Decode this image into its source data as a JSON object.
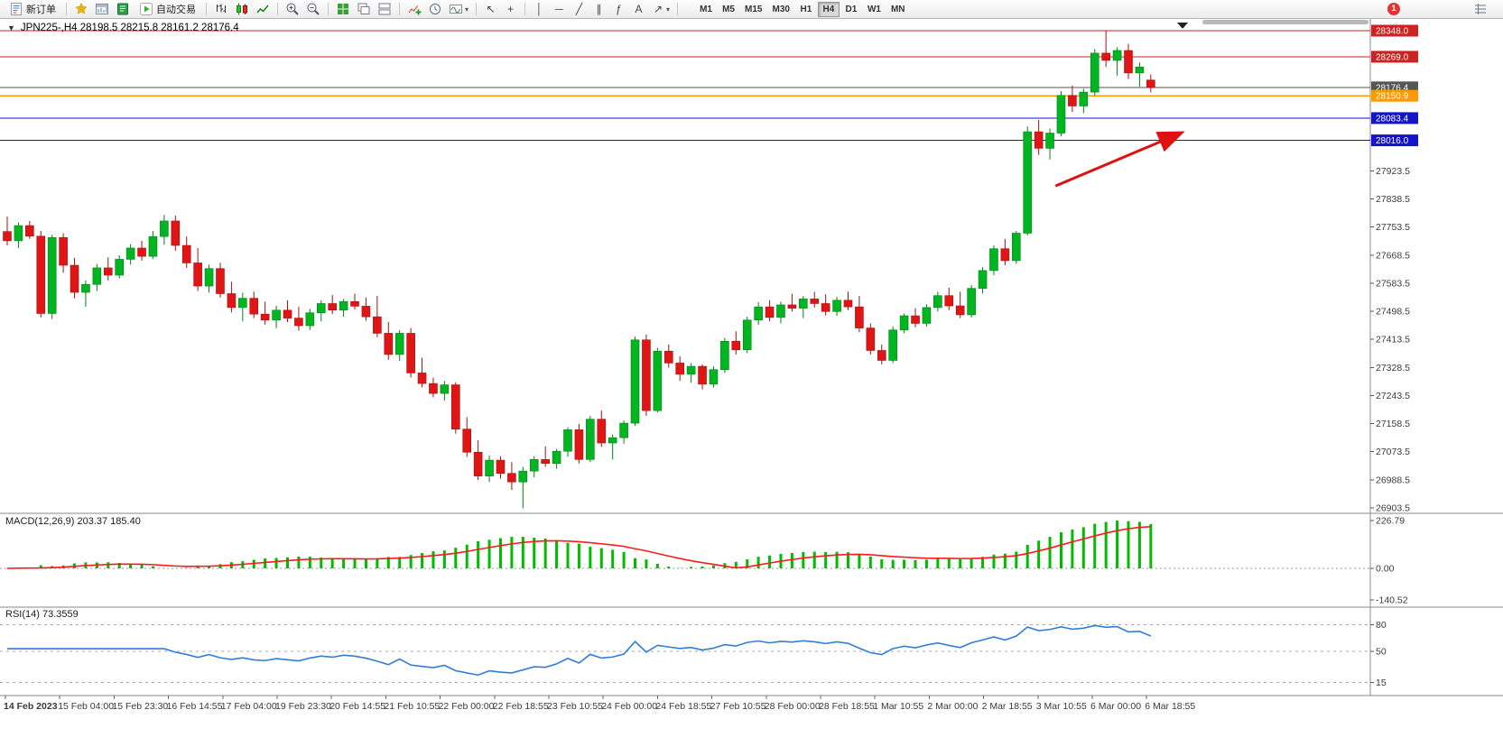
{
  "toolbar": {
    "new_order": "新订单",
    "auto_trading": "自动交易",
    "timeframes": [
      "M1",
      "M5",
      "M15",
      "M30",
      "H1",
      "H4",
      "D1",
      "W1",
      "MN"
    ],
    "active_timeframe": "H4",
    "notification_badge": "1"
  },
  "icons": {
    "collapse": "▼",
    "cursor": "↖",
    "crosshair": "+",
    "vline": "│",
    "hline": "─",
    "trendline": "╱",
    "channel": "∥",
    "fibonacci": "ƒ",
    "text_tool": "A",
    "arrow_tool": "↗",
    "caret": "▾"
  },
  "chart": {
    "ohlc_info": "JPN225-,H4 28198.5 28215.8 28161.2 28176.4",
    "symbol": "JPN225-",
    "period": "H4",
    "current": {
      "open": 28198.5,
      "high": 28215.8,
      "low": 28161.2,
      "close": 28176.4
    },
    "hlines": [
      {
        "price": 28348.0,
        "label": "28348.0",
        "type": "red"
      },
      {
        "price": 28269.0,
        "label": "28269.0",
        "type": "red"
      },
      {
        "price": 28176.4,
        "label": "28176.4",
        "type": "current"
      },
      {
        "price": 28150.9,
        "label": "28150.9",
        "type": "orange"
      },
      {
        "price": 28083.4,
        "label": "28083.4",
        "type": "blue"
      },
      {
        "price": 28016.0,
        "label": "28016.0",
        "type": "blue"
      }
    ],
    "price_axis": [
      "27923.5",
      "27838.5",
      "27753.5",
      "27668.5",
      "27583.5",
      "27498.5",
      "27413.5",
      "27328.5",
      "27243.5",
      "27158.5",
      "27073.5",
      "26988.5",
      "26903.5"
    ],
    "trend_arrow": {
      "from_index": 93.5,
      "from_price": 27878,
      "to_index": 104.6,
      "to_price": 28037,
      "color": "#e01010"
    }
  },
  "macd_panel": {
    "label": "MACD(12,26,9) 203.37 185.40",
    "scale_top": "226.79",
    "scale_zero": "0.00",
    "scale_bottom": "-140.52"
  },
  "rsi_panel": {
    "label": "RSI(14) 73.3559",
    "levels": [
      "80",
      "50",
      "15"
    ]
  },
  "time_axis": [
    "14 Feb 2023",
    "15 Feb 04:00",
    "15 Feb 23:30",
    "16 Feb 14:55",
    "17 Feb 04:00",
    "19 Feb 23:30",
    "20 Feb 14:55",
    "21 Feb 10:55",
    "22 Feb 00:00",
    "22 Feb 18:55",
    "23 Feb 10:55",
    "24 Feb 00:00",
    "24 Feb 18:55",
    "27 Feb 10:55",
    "28 Feb 00:00",
    "28 Feb 18:55",
    "1 Mar 10:55",
    "2 Mar 00:00",
    "2 Mar 18:55",
    "3 Mar 10:55",
    "6 Mar 00:00",
    "6 Mar 18:55"
  ],
  "chart_data": {
    "type": "candlestick",
    "symbol": "JPN225-",
    "timeframe": "H4",
    "price_range": [
      26903.5,
      28348.0
    ],
    "up_color": "#00b520",
    "down_color": "#e01515",
    "x_labels": [
      "14 Feb 2023",
      "15 Feb 04:00",
      "15 Feb 23:30",
      "16 Feb 14:55",
      "17 Feb 04:00",
      "19 Feb 23:30",
      "20 Feb 14:55",
      "21 Feb 10:55",
      "22 Feb 00:00",
      "22 Feb 18:55",
      "23 Feb 10:55",
      "24 Feb 00:00",
      "24 Feb 18:55",
      "27 Feb 10:55",
      "28 Feb 00:00",
      "28 Feb 18:55",
      "1 Mar 10:55",
      "2 Mar 00:00",
      "2 Mar 18:55",
      "3 Mar 10:55",
      "6 Mar 00:00",
      "6 Mar 18:55"
    ],
    "candles": [
      [
        27740,
        27785,
        27698,
        27712
      ],
      [
        27712,
        27768,
        27690,
        27758
      ],
      [
        27758,
        27772,
        27718,
        27726
      ],
      [
        27726,
        27742,
        27480,
        27492
      ],
      [
        27492,
        27730,
        27475,
        27722
      ],
      [
        27722,
        27735,
        27615,
        27638
      ],
      [
        27638,
        27660,
        27538,
        27556
      ],
      [
        27556,
        27592,
        27512,
        27580
      ],
      [
        27580,
        27642,
        27560,
        27630
      ],
      [
        27630,
        27662,
        27592,
        27608
      ],
      [
        27608,
        27668,
        27598,
        27656
      ],
      [
        27656,
        27702,
        27640,
        27690
      ],
      [
        27690,
        27712,
        27652,
        27665
      ],
      [
        27665,
        27742,
        27658,
        27725
      ],
      [
        27725,
        27790,
        27700,
        27772
      ],
      [
        27772,
        27788,
        27682,
        27698
      ],
      [
        27698,
        27725,
        27630,
        27645
      ],
      [
        27645,
        27690,
        27560,
        27575
      ],
      [
        27575,
        27640,
        27555,
        27628
      ],
      [
        27628,
        27645,
        27540,
        27552
      ],
      [
        27552,
        27588,
        27495,
        27510
      ],
      [
        27510,
        27555,
        27468,
        27538
      ],
      [
        27538,
        27558,
        27478,
        27490
      ],
      [
        27490,
        27528,
        27458,
        27472
      ],
      [
        27472,
        27515,
        27448,
        27502
      ],
      [
        27502,
        27532,
        27466,
        27478
      ],
      [
        27478,
        27512,
        27440,
        27455
      ],
      [
        27455,
        27506,
        27442,
        27494
      ],
      [
        27494,
        27532,
        27468,
        27522
      ],
      [
        27522,
        27548,
        27490,
        27502
      ],
      [
        27502,
        27536,
        27482,
        27528
      ],
      [
        27528,
        27552,
        27504,
        27514
      ],
      [
        27514,
        27540,
        27470,
        27482
      ],
      [
        27482,
        27545,
        27420,
        27432
      ],
      [
        27432,
        27466,
        27352,
        27368
      ],
      [
        27368,
        27442,
        27348,
        27432
      ],
      [
        27432,
        27448,
        27298,
        27312
      ],
      [
        27312,
        27358,
        27268,
        27280
      ],
      [
        27280,
        27298,
        27238,
        27250
      ],
      [
        27250,
        27288,
        27228,
        27276
      ],
      [
        27276,
        27284,
        27128,
        27142
      ],
      [
        27142,
        27178,
        27058,
        27072
      ],
      [
        27072,
        27108,
        26988,
        27000
      ],
      [
        27000,
        27062,
        26982,
        27048
      ],
      [
        27048,
        27060,
        26992,
        27008
      ],
      [
        27008,
        27042,
        26958,
        26982
      ],
      [
        26982,
        27028,
        26902,
        27015
      ],
      [
        27015,
        27060,
        26996,
        27050
      ],
      [
        27050,
        27090,
        27028,
        27038
      ],
      [
        27038,
        27082,
        27022,
        27075
      ],
      [
        27075,
        27148,
        27058,
        27140
      ],
      [
        27140,
        27158,
        27038,
        27050
      ],
      [
        27050,
        27182,
        27042,
        27172
      ],
      [
        27172,
        27198,
        27088,
        27100
      ],
      [
        27100,
        27126,
        27050,
        27116
      ],
      [
        27116,
        27168,
        27098,
        27160
      ],
      [
        27160,
        27422,
        27152,
        27412
      ],
      [
        27412,
        27428,
        27182,
        27198
      ],
      [
        27198,
        27388,
        27192,
        27378
      ],
      [
        27378,
        27398,
        27328,
        27342
      ],
      [
        27342,
        27362,
        27288,
        27308
      ],
      [
        27308,
        27342,
        27282,
        27332
      ],
      [
        27332,
        27338,
        27262,
        27278
      ],
      [
        27278,
        27332,
        27268,
        27322
      ],
      [
        27322,
        27418,
        27312,
        27408
      ],
      [
        27408,
        27438,
        27368,
        27382
      ],
      [
        27382,
        27482,
        27372,
        27472
      ],
      [
        27472,
        27526,
        27458,
        27512
      ],
      [
        27512,
        27532,
        27468,
        27480
      ],
      [
        27480,
        27528,
        27462,
        27518
      ],
      [
        27518,
        27552,
        27498,
        27508
      ],
      [
        27508,
        27545,
        27478,
        27536
      ],
      [
        27536,
        27558,
        27510,
        27522
      ],
      [
        27522,
        27550,
        27486,
        27498
      ],
      [
        27498,
        27542,
        27485,
        27532
      ],
      [
        27532,
        27558,
        27502,
        27512
      ],
      [
        27512,
        27545,
        27435,
        27448
      ],
      [
        27448,
        27462,
        27368,
        27380
      ],
      [
        27380,
        27398,
        27338,
        27350
      ],
      [
        27350,
        27452,
        27342,
        27442
      ],
      [
        27442,
        27492,
        27432,
        27485
      ],
      [
        27485,
        27508,
        27450,
        27462
      ],
      [
        27462,
        27520,
        27452,
        27510
      ],
      [
        27510,
        27558,
        27498,
        27546
      ],
      [
        27546,
        27570,
        27502,
        27515
      ],
      [
        27515,
        27558,
        27478,
        27488
      ],
      [
        27488,
        27578,
        27480,
        27568
      ],
      [
        27568,
        27632,
        27552,
        27622
      ],
      [
        27622,
        27698,
        27608,
        27688
      ],
      [
        27688,
        27718,
        27638,
        27652
      ],
      [
        27652,
        27742,
        27642,
        27735
      ],
      [
        27735,
        28058,
        27728,
        28042
      ],
      [
        28042,
        28078,
        27972,
        27992
      ],
      [
        27992,
        28052,
        27958,
        28038
      ],
      [
        28038,
        28165,
        28028,
        28152
      ],
      [
        28152,
        28182,
        28102,
        28120
      ],
      [
        28120,
        28172,
        28098,
        28162
      ],
      [
        28162,
        28292,
        28152,
        28280
      ],
      [
        28280,
        28348,
        28238,
        28258
      ],
      [
        28258,
        28298,
        28212,
        28288
      ],
      [
        28288,
        28308,
        28202,
        28220
      ],
      [
        28220,
        28252,
        28178,
        28238
      ],
      [
        28198.5,
        28215.8,
        28161.2,
        28176.4
      ]
    ],
    "indicators": {
      "macd": {
        "params": [
          12,
          26,
          9
        ],
        "macd_current": 203.37,
        "signal_current": 185.4,
        "scale": [
          226.79,
          0.0,
          -140.52
        ],
        "histogram_color": "#00bb00",
        "signal_color": "#ff1a1a"
      },
      "rsi": {
        "period": 14,
        "current": 73.3559,
        "levels": [
          80,
          50,
          15
        ],
        "line_color": "#2f7ed8"
      }
    }
  }
}
